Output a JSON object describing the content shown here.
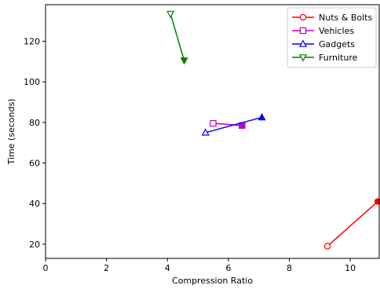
{
  "chart_data": {
    "type": "line",
    "xlabel": "Compression Ratio",
    "ylabel": "Time (seconds)",
    "xlim": [
      0,
      10.95
    ],
    "ylim": [
      13,
      138
    ],
    "xticks": [
      0,
      2,
      4,
      6,
      8,
      10
    ],
    "yticks": [
      20,
      40,
      60,
      80,
      100,
      120
    ],
    "grid": false,
    "legend_position": "top-right",
    "series": [
      {
        "name": "Nuts & Bolts",
        "color": "#ff0000",
        "marker": "circle",
        "points": [
          {
            "x": 9.25,
            "y": 19
          },
          {
            "x": 10.9,
            "y": 41
          }
        ]
      },
      {
        "name": "Vehicles",
        "color": "#bf00bf",
        "marker": "square",
        "points": [
          {
            "x": 5.5,
            "y": 79.5
          },
          {
            "x": 6.45,
            "y": 78.5
          }
        ]
      },
      {
        "name": "Gadgets",
        "color": "#0000ff",
        "marker": "triangle-up",
        "points": [
          {
            "x": 5.25,
            "y": 75
          },
          {
            "x": 7.1,
            "y": 82.5
          }
        ]
      },
      {
        "name": "Furniture",
        "color": "#008000",
        "marker": "triangle-down",
        "points": [
          {
            "x": 4.1,
            "y": 133.5
          },
          {
            "x": 4.55,
            "y": 110.5
          }
        ]
      }
    ]
  }
}
